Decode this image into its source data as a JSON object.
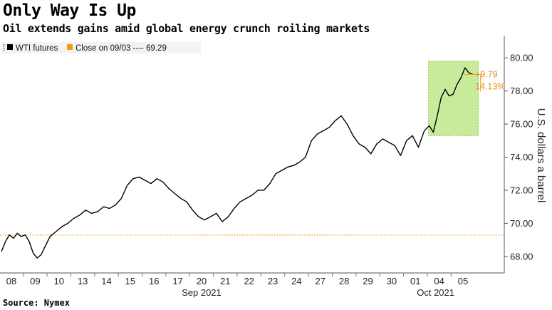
{
  "title": "Only Way Is Up",
  "subtitle": "Oil extends gains amid global energy crunch roiling markets",
  "source": "Source: Nymex",
  "colors": {
    "line": "#000000",
    "reference": "#f39c12",
    "highlight_fill": "#b6e37a",
    "highlight_stroke": "#8cc63f"
  },
  "chart_data": {
    "type": "line",
    "ylabel": "U.S. dollars a barrel",
    "ylim": [
      67,
      81
    ],
    "y_ticks": [
      "68.00",
      "70.00",
      "72.00",
      "74.00",
      "76.00",
      "78.00",
      "80.00"
    ],
    "x_ticks": [
      "08",
      "09",
      "10",
      "13",
      "14",
      "15",
      "16",
      "17",
      "20",
      "21",
      "22",
      "23",
      "24",
      "27",
      "28",
      "29",
      "30",
      "01",
      "04",
      "05"
    ],
    "x_months": [
      "Sep 2021",
      "Oct 2021"
    ],
    "legend": [
      {
        "label": "WTI futures",
        "icon": "square-black"
      },
      {
        "label": "Close on 09/03 ---- 69.29",
        "icon": "square-orange"
      }
    ],
    "reference_line": {
      "name": "Close on 09/03",
      "value": 69.29
    },
    "annotation": {
      "change": "+9.79",
      "percent": "14.13%"
    },
    "highlight_range": {
      "y_from": 75.3,
      "y_to": 79.8
    },
    "grid": false,
    "legend_position": "top-left",
    "series": [
      {
        "name": "WTI futures",
        "points": [
          [
            "08",
            68.3
          ],
          [
            "08",
            68.9
          ],
          [
            "08",
            69.3
          ],
          [
            "08",
            69.1
          ],
          [
            "08",
            69.4
          ],
          [
            "08",
            69.2
          ],
          [
            "09",
            69.3
          ],
          [
            "09",
            68.9
          ],
          [
            "09",
            68.2
          ],
          [
            "09",
            67.9
          ],
          [
            "09",
            68.1
          ],
          [
            "09",
            68.6
          ],
          [
            "10",
            69.2
          ],
          [
            "10",
            69.5
          ],
          [
            "10",
            69.8
          ],
          [
            "10",
            70.0
          ],
          [
            "13",
            70.3
          ],
          [
            "13",
            70.5
          ],
          [
            "13",
            70.8
          ],
          [
            "13",
            70.6
          ],
          [
            "14",
            70.7
          ],
          [
            "14",
            71.0
          ],
          [
            "14",
            70.9
          ],
          [
            "14",
            71.1
          ],
          [
            "15",
            71.5
          ],
          [
            "15",
            72.3
          ],
          [
            "15",
            72.7
          ],
          [
            "15",
            72.8
          ],
          [
            "16",
            72.6
          ],
          [
            "16",
            72.4
          ],
          [
            "16",
            72.7
          ],
          [
            "16",
            72.5
          ],
          [
            "17",
            72.1
          ],
          [
            "17",
            71.8
          ],
          [
            "17",
            71.5
          ],
          [
            "17",
            71.3
          ],
          [
            "20",
            70.8
          ],
          [
            "20",
            70.4
          ],
          [
            "20",
            70.2
          ],
          [
            "20",
            70.4
          ],
          [
            "21",
            70.6
          ],
          [
            "21",
            70.1
          ],
          [
            "21",
            70.4
          ],
          [
            "21",
            70.9
          ],
          [
            "22",
            71.3
          ],
          [
            "22",
            71.5
          ],
          [
            "22",
            71.7
          ],
          [
            "22",
            72.0
          ],
          [
            "23",
            72.0
          ],
          [
            "23",
            72.4
          ],
          [
            "23",
            73.0
          ],
          [
            "23",
            73.2
          ],
          [
            "24",
            73.4
          ],
          [
            "24",
            73.5
          ],
          [
            "24",
            73.7
          ],
          [
            "24",
            74.0
          ],
          [
            "27",
            75.0
          ],
          [
            "27",
            75.4
          ],
          [
            "27",
            75.6
          ],
          [
            "27",
            75.8
          ],
          [
            "28",
            76.2
          ],
          [
            "28",
            76.5
          ],
          [
            "28",
            76.0
          ],
          [
            "28",
            75.3
          ],
          [
            "29",
            74.8
          ],
          [
            "29",
            74.6
          ],
          [
            "29",
            74.2
          ],
          [
            "29",
            74.8
          ],
          [
            "30",
            75.1
          ],
          [
            "30",
            74.9
          ],
          [
            "30",
            74.7
          ],
          [
            "30",
            74.1
          ],
          [
            "01",
            75.0
          ],
          [
            "01",
            75.3
          ],
          [
            "01",
            74.6
          ],
          [
            "01",
            75.6
          ],
          [
            "04",
            75.9
          ],
          [
            "04",
            75.5
          ],
          [
            "04",
            76.5
          ],
          [
            "04",
            77.6
          ],
          [
            "04",
            78.1
          ],
          [
            "04",
            77.7
          ],
          [
            "05",
            77.8
          ],
          [
            "05",
            78.4
          ],
          [
            "05",
            78.8
          ],
          [
            "05",
            79.4
          ],
          [
            "05",
            79.1
          ],
          [
            "05",
            79.0
          ]
        ]
      }
    ]
  }
}
